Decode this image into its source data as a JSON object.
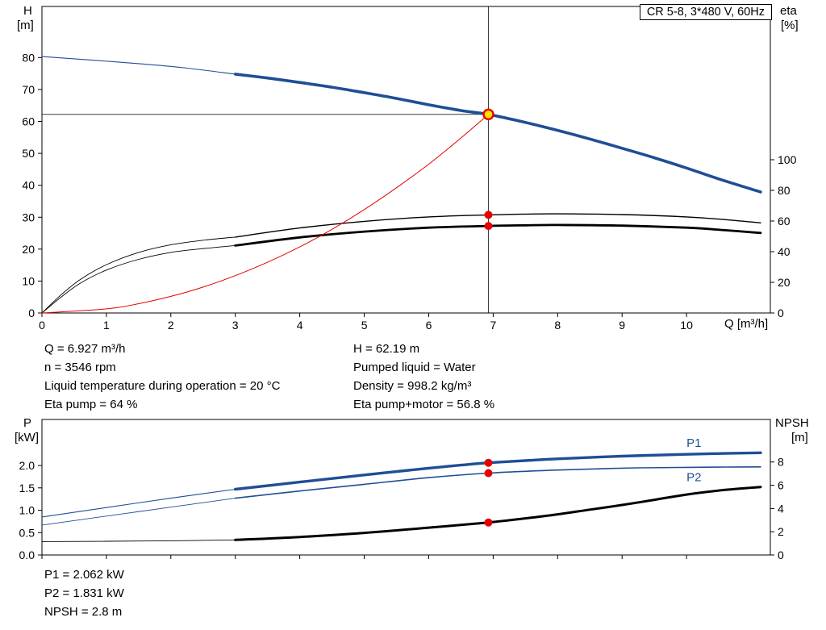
{
  "title_box": "CR 5-8, 3*480 V, 60Hz",
  "colors": {
    "curve_blue": "#1f4e96",
    "curve_black": "#000000",
    "curve_red": "#e60000",
    "duty_fill": "#ffdf00",
    "refline": "#3d3d3d"
  },
  "labels": {
    "h": "H",
    "m": "[m]",
    "eta": "eta",
    "pct": "[%]",
    "q_unit": "Q [m³/h]",
    "p": "P",
    "kw": "[kW]",
    "npsh": "NPSH",
    "npsh_m": "[m]"
  },
  "info_top_left": [
    "Q = 6.927 m³/h",
    "n = 3546 rpm",
    "Liquid temperature during operation = 20 °C",
    "Eta pump = 64 %"
  ],
  "info_top_right": [
    "H = 62.19 m",
    "Pumped liquid = Water",
    "Density = 998.2 kg/m³",
    "Eta pump+motor = 56.8 %"
  ],
  "info_bottom": [
    "P1 = 2.062 kW",
    "P2 = 1.831 kW",
    "NPSH = 2.8 m"
  ],
  "chart_data": [
    {
      "type": "line",
      "name": "qh-eta-chart",
      "title": "CR 5-8, 3*480 V, 60Hz",
      "x_axis": {
        "label": "Q [m³/h]",
        "lim": [
          0,
          11.3
        ],
        "tick_values": [
          0,
          1,
          2,
          3,
          4,
          5,
          6,
          7,
          8,
          9,
          10
        ],
        "tick_labels": [
          "0",
          "1",
          "2",
          "3",
          "4",
          "5",
          "6",
          "7",
          "8",
          "9",
          "10"
        ]
      },
      "left_axis": {
        "label": "H [m]",
        "lim": [
          0,
          96
        ],
        "tick_values": [
          0,
          10,
          20,
          30,
          40,
          50,
          60,
          70,
          80
        ],
        "tick_labels": [
          "0",
          "10",
          "20",
          "30",
          "40",
          "50",
          "60",
          "70",
          "80"
        ]
      },
      "right_axis": {
        "label": "eta [%]",
        "lim": [
          0,
          200
        ],
        "tick_values": [
          0,
          20,
          40,
          60,
          80,
          100
        ],
        "tick_labels": [
          "0",
          "20",
          "40",
          "60",
          "80",
          "100"
        ]
      },
      "series": [
        {
          "name": "head-curve-leadin",
          "axis": "left",
          "color": "#1f4e96",
          "width": 1.1,
          "x": [
            0,
            0.7,
            1.5,
            2.2,
            3
          ],
          "y": [
            80.3,
            79.3,
            78.1,
            76.8,
            74.8
          ]
        },
        {
          "name": "head-curve",
          "axis": "left",
          "color": "#1f4e96",
          "width": 3.6,
          "x": [
            3,
            3.5,
            4,
            4.5,
            5,
            5.5,
            6,
            6.5,
            6.927,
            7.5,
            8,
            8.5,
            9,
            9.5,
            10,
            10.5,
            11.15
          ],
          "y": [
            74.8,
            73.6,
            72.2,
            70.7,
            69.0,
            67.2,
            65.2,
            63.4,
            62.19,
            59.7,
            57.2,
            54.5,
            51.6,
            48.6,
            45.4,
            42.0,
            37.9
          ]
        },
        {
          "name": "eta-pump-curve-leadin",
          "axis": "right",
          "color": "#000000",
          "width": 0.9,
          "x": [
            0,
            0.3,
            0.6,
            1,
            1.5,
            2,
            2.5,
            3
          ],
          "y": [
            0,
            12,
            22,
            31.5,
            39.5,
            44.5,
            47.5,
            49.5
          ]
        },
        {
          "name": "eta-pump-curve",
          "axis": "right",
          "color": "#000000",
          "width": 1.4,
          "x": [
            3,
            4,
            5,
            6,
            6.927,
            7.5,
            8,
            9,
            10,
            10.6,
            11.15
          ],
          "y": [
            49.5,
            55.5,
            59.8,
            62.7,
            64,
            64.5,
            64.7,
            64.2,
            62.7,
            60.9,
            58.8
          ]
        },
        {
          "name": "eta-pump-motor-curve-leadin",
          "axis": "right",
          "color": "#000000",
          "width": 0.9,
          "x": [
            0,
            0.3,
            0.6,
            1,
            1.5,
            2,
            2.5,
            3
          ],
          "y": [
            0,
            10.5,
            19.5,
            28,
            35,
            39.5,
            42,
            44
          ]
        },
        {
          "name": "eta-pump-motor-curve",
          "axis": "right",
          "color": "#000000",
          "width": 2.8,
          "x": [
            3,
            4,
            5,
            6,
            6.927,
            7.5,
            8,
            9,
            10,
            10.6,
            11.15
          ],
          "y": [
            44,
            49.3,
            53.1,
            55.7,
            56.8,
            57.2,
            57.4,
            57.0,
            55.7,
            54.0,
            52.2
          ]
        },
        {
          "name": "system-curve",
          "axis": "left",
          "color": "#e60000",
          "width": 1,
          "x": [
            0,
            1,
            1.5,
            2,
            2.5,
            3,
            3.5,
            4,
            4.5,
            5,
            5.5,
            6,
            6.5,
            6.927
          ],
          "y": [
            0,
            1.3,
            2.9,
            5.2,
            8.1,
            11.7,
            15.9,
            20.7,
            26.2,
            32.4,
            39.2,
            46.6,
            54.8,
            62.19
          ]
        }
      ],
      "reference_lines": [
        {
          "dir": "h",
          "axis": "left",
          "v": 62.19,
          "q_end": 6.927
        },
        {
          "dir": "v",
          "q": 6.927
        }
      ],
      "markers": [
        {
          "type": "dot",
          "axis": "right",
          "q": 6.927,
          "v": 64
        },
        {
          "type": "dot",
          "axis": "right",
          "q": 6.927,
          "v": 56.8
        },
        {
          "type": "duty",
          "axis": "left",
          "q": 6.927,
          "v": 62.19
        }
      ]
    },
    {
      "type": "line",
      "name": "power-npsh-chart",
      "x_axis": {
        "label": "",
        "lim": [
          0,
          11.3
        ],
        "tick_values": [
          0,
          1,
          2,
          3,
          4,
          5,
          6,
          7,
          8,
          9,
          10
        ]
      },
      "left_axis": {
        "label": "P [kW]",
        "lim": [
          0,
          3.03
        ],
        "tick_values": [
          0,
          0.5,
          1.0,
          1.5,
          2.0
        ],
        "tick_labels": [
          "0.0",
          "0.5",
          "1.0",
          "1.5",
          "2.0"
        ]
      },
      "right_axis": {
        "label": "NPSH [m]",
        "lim": [
          0,
          11.66
        ],
        "tick_values": [
          0,
          2,
          4,
          6,
          8
        ],
        "tick_labels": [
          "0",
          "2",
          "4",
          "6",
          "8"
        ]
      },
      "series": [
        {
          "name": "p1-curve-leadin",
          "axis": "left",
          "color": "#1f4e96",
          "width": 1.1,
          "x": [
            0,
            1,
            2,
            3
          ],
          "y": [
            0.85,
            1.06,
            1.27,
            1.47
          ]
        },
        {
          "name": "p1-curve",
          "axis": "left",
          "color": "#1f4e96",
          "width": 3.4,
          "x": [
            3,
            4,
            5,
            6,
            6.5,
            6.927,
            7.5,
            8,
            9,
            10,
            10.6,
            11.15
          ],
          "y": [
            1.47,
            1.63,
            1.79,
            1.94,
            2.01,
            2.062,
            2.11,
            2.15,
            2.21,
            2.25,
            2.27,
            2.285
          ]
        },
        {
          "name": "p2-curve-leadin",
          "axis": "left",
          "color": "#1f4e96",
          "width": 0.9,
          "x": [
            0,
            1,
            2,
            3
          ],
          "y": [
            0.67,
            0.87,
            1.07,
            1.27
          ]
        },
        {
          "name": "p2-curve",
          "axis": "left",
          "color": "#1f4e96",
          "width": 1.6,
          "x": [
            3,
            4,
            5,
            6,
            6.927,
            8,
            9,
            10,
            10.6,
            11.15
          ],
          "y": [
            1.27,
            1.43,
            1.58,
            1.73,
            1.831,
            1.9,
            1.94,
            1.958,
            1.965,
            1.97
          ]
        },
        {
          "name": "npsh-curve-leadin",
          "axis": "right",
          "color": "#000000",
          "width": 0.9,
          "x": [
            0,
            1,
            2,
            3
          ],
          "y": [
            1.15,
            1.18,
            1.22,
            1.3
          ]
        },
        {
          "name": "npsh-curve",
          "axis": "right",
          "color": "#000000",
          "width": 3.0,
          "x": [
            3,
            4,
            5,
            6,
            6.927,
            7.5,
            8,
            8.5,
            9,
            9.5,
            10,
            10.6,
            11.15
          ],
          "y": [
            1.3,
            1.55,
            1.9,
            2.35,
            2.8,
            3.15,
            3.5,
            3.9,
            4.3,
            4.75,
            5.2,
            5.6,
            5.85
          ]
        }
      ],
      "curve_labels": [
        {
          "text": "P1",
          "axis": "left",
          "q": 10.0,
          "v": 2.42,
          "color": "#1f4e96"
        },
        {
          "text": "P2",
          "axis": "left",
          "q": 10.0,
          "v": 1.65,
          "color": "#1f4e96"
        }
      ],
      "markers": [
        {
          "type": "dot",
          "axis": "left",
          "q": 6.927,
          "v": 2.062
        },
        {
          "type": "dot",
          "axis": "left",
          "q": 6.927,
          "v": 1.831
        },
        {
          "type": "dot",
          "axis": "right",
          "q": 6.927,
          "v": 2.8
        }
      ]
    }
  ]
}
